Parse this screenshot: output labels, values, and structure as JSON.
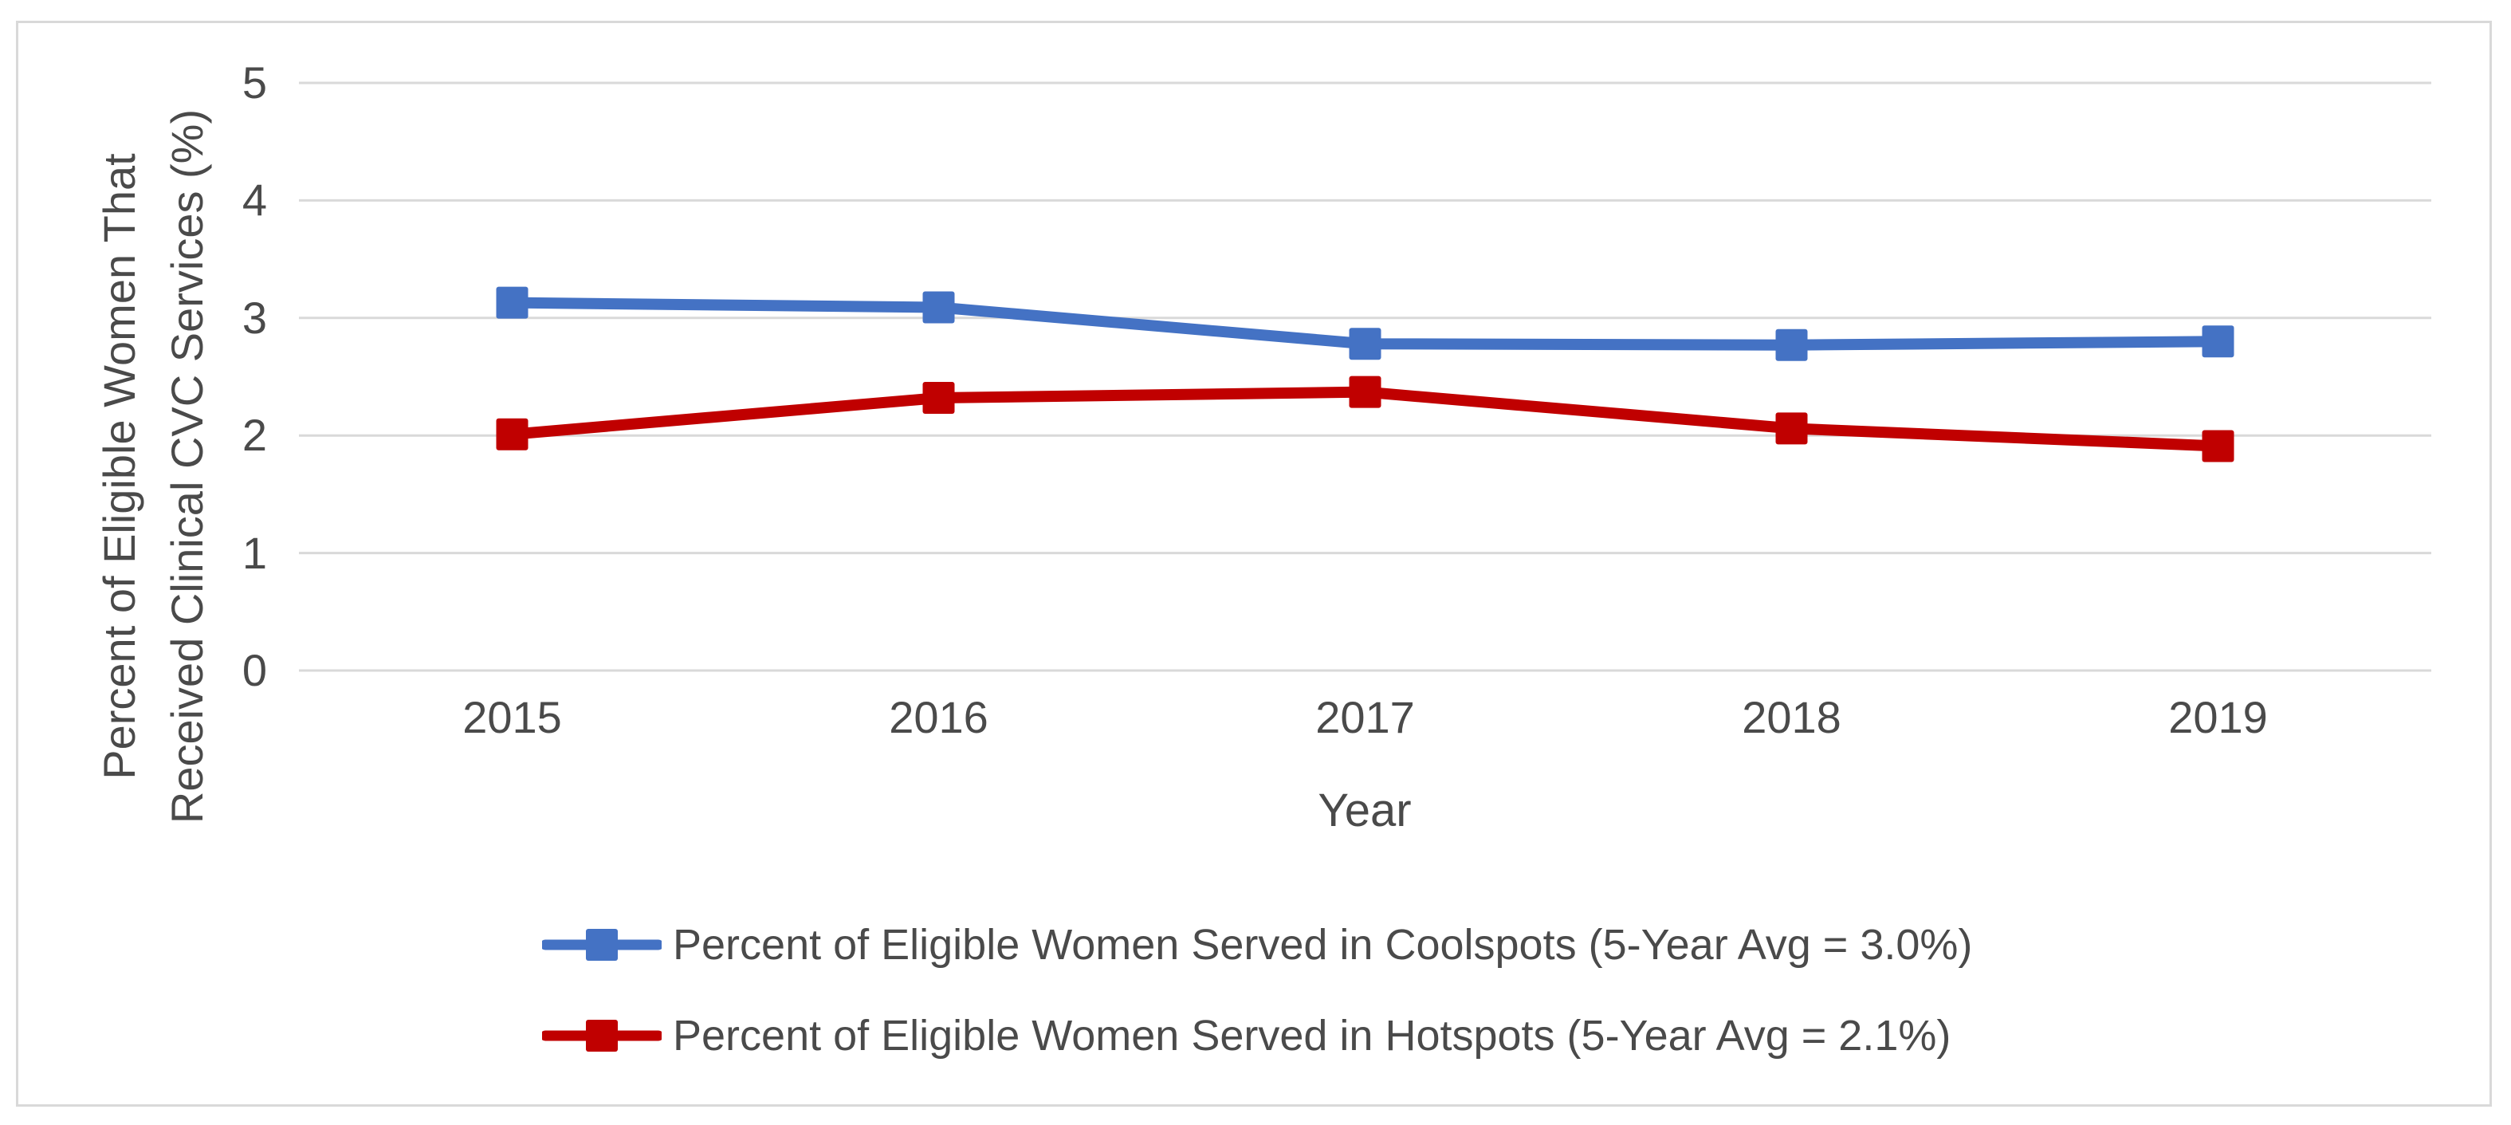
{
  "chart_data": {
    "type": "line",
    "title": "",
    "xlabel": "Year",
    "ylabel": "Percent of Eligible Women That Received Clinical CVC Services (%)",
    "ylabel_lines": [
      "Percent of Eligible Women That",
      "Received Clinical CVC Services (%)"
    ],
    "categories": [
      "2015",
      "2016",
      "2017",
      "2018",
      "2019"
    ],
    "series": [
      {
        "name": "Percent of Eligible Women Served in Coolspots (5-Year Avg = 3.0%)",
        "color": "#4472C4",
        "values": [
          3.13,
          3.09,
          2.78,
          2.77,
          2.8
        ]
      },
      {
        "name": "Percent of Eligible Women Served in Hotspots (5-Year Avg = 2.1%)",
        "color": "#C00000",
        "values": [
          2.01,
          2.32,
          2.37,
          2.06,
          1.91
        ]
      }
    ],
    "ylim": [
      0,
      5
    ],
    "yticks": [
      0,
      1,
      2,
      3,
      4,
      5
    ],
    "grid": true,
    "marker": "square",
    "legend_position": "bottom-left"
  },
  "colors": {
    "grid": "#D9D9D9",
    "border": "#D9D9D9",
    "text": "#4A4A4A",
    "background": "#FFFFFF"
  }
}
